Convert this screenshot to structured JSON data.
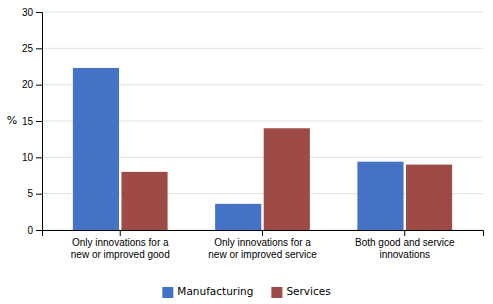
{
  "chart_data": {
    "type": "bar",
    "categories": [
      "Only innovations for a\nnew or improved good",
      "Only innovations for a\nnew or improved service",
      "Both good and service\ninnovations"
    ],
    "series": [
      {
        "name": "Manufacturing",
        "color": "#4472C4",
        "values": [
          22.3,
          3.6,
          9.4
        ]
      },
      {
        "name": "Services",
        "color": "#9E4B47",
        "values": [
          8.0,
          14.0,
          9.0
        ]
      }
    ],
    "ylabel": "%",
    "ylim": [
      0,
      30
    ],
    "yticks": [
      0,
      5,
      10,
      15,
      20,
      25,
      30
    ],
    "grid": true,
    "legend": "bottom"
  }
}
